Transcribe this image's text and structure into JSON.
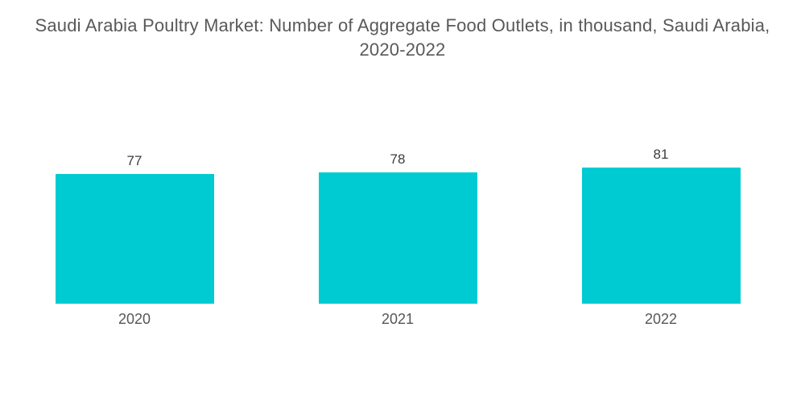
{
  "chart_data": {
    "type": "bar",
    "title": "Saudi Arabia Poultry Market: Number of Aggregate Food Outlets, in thousand, Saudi Arabia, 2020-2022",
    "title_lines": [
      "Saudi Arabia Poultry Market: Number of Aggregate Food Outlets, in thousand, Saudi Arabia,",
      "2020-2022"
    ],
    "categories": [
      "2020",
      "2021",
      "2022"
    ],
    "values": [
      77,
      78,
      81
    ],
    "unit": "thousand outlets",
    "xlabel": "",
    "ylabel": "",
    "ylim": [
      0,
      81
    ],
    "grid": false,
    "legend": false,
    "axes_visible": false,
    "value_labels_position": "above bars",
    "bar_color": "#00CBD2",
    "title_color": "#58595B",
    "value_label_color": "#3C3C3E",
    "category_label_color": "#55565A",
    "background_color": "#FFFFFF"
  }
}
